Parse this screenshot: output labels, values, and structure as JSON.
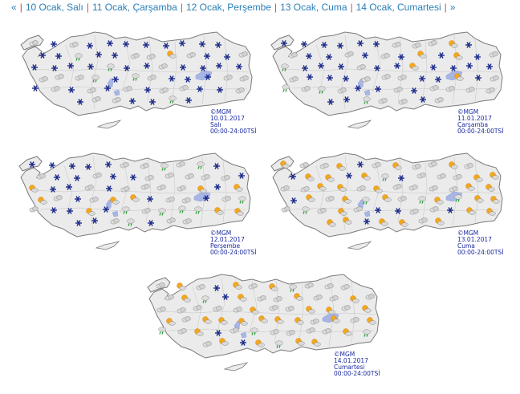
{
  "nav": {
    "prev": "«",
    "next": "»",
    "items": [
      {
        "label": "10 Ocak, Salı"
      },
      {
        "label": "11 Ocak, Çarşamba"
      },
      {
        "label": "12 Ocak, Perşembe"
      },
      {
        "label": "13 Ocak, Cuma"
      },
      {
        "label": "14 Ocak, Cumartesi"
      }
    ]
  },
  "maps": [
    {
      "credit": "©MGM",
      "date": "10.01.2017",
      "day": "Salı",
      "time": "00:00-24:00TSİ",
      "icons": {
        "snow": 0.55,
        "cloud": 0.3,
        "sun": 0.08,
        "rain": 0.07
      }
    },
    {
      "credit": "©MGM",
      "date": "11.01.2017",
      "day": "Çarşamba",
      "time": "00:00-24:00TSİ",
      "icons": {
        "snow": 0.42,
        "cloud": 0.35,
        "sun": 0.15,
        "rain": 0.08
      }
    },
    {
      "credit": "©MGM",
      "date": "12.01.2017",
      "day": "Perşembe",
      "time": "00:00-24:00TSİ",
      "icons": {
        "snow": 0.38,
        "cloud": 0.4,
        "sun": 0.15,
        "rain": 0.07
      }
    },
    {
      "credit": "©MGM",
      "date": "13.01.2017",
      "day": "Cuma",
      "time": "00:00-24:00TSİ",
      "icons": {
        "snow": 0.1,
        "cloud": 0.35,
        "sun": 0.5,
        "rain": 0.05
      }
    },
    {
      "credit": "©MGM",
      "date": "14.01.2017",
      "day": "Cumartesi",
      "time": "00:00-24:00TSİ",
      "icons": {
        "snow": 0.05,
        "cloud": 0.45,
        "sun": 0.4,
        "rain": 0.1
      }
    }
  ],
  "colors": {
    "snow": "#1a2a8a",
    "cloud": "#9a9a9a",
    "sun": "#f2a81d",
    "rain": "#2e9e3a",
    "land": "#ebebeb",
    "border": "#7a7a7a",
    "lake": "#a8b6e6",
    "link": "#2a7fb8",
    "separator": "#d04a4a"
  }
}
